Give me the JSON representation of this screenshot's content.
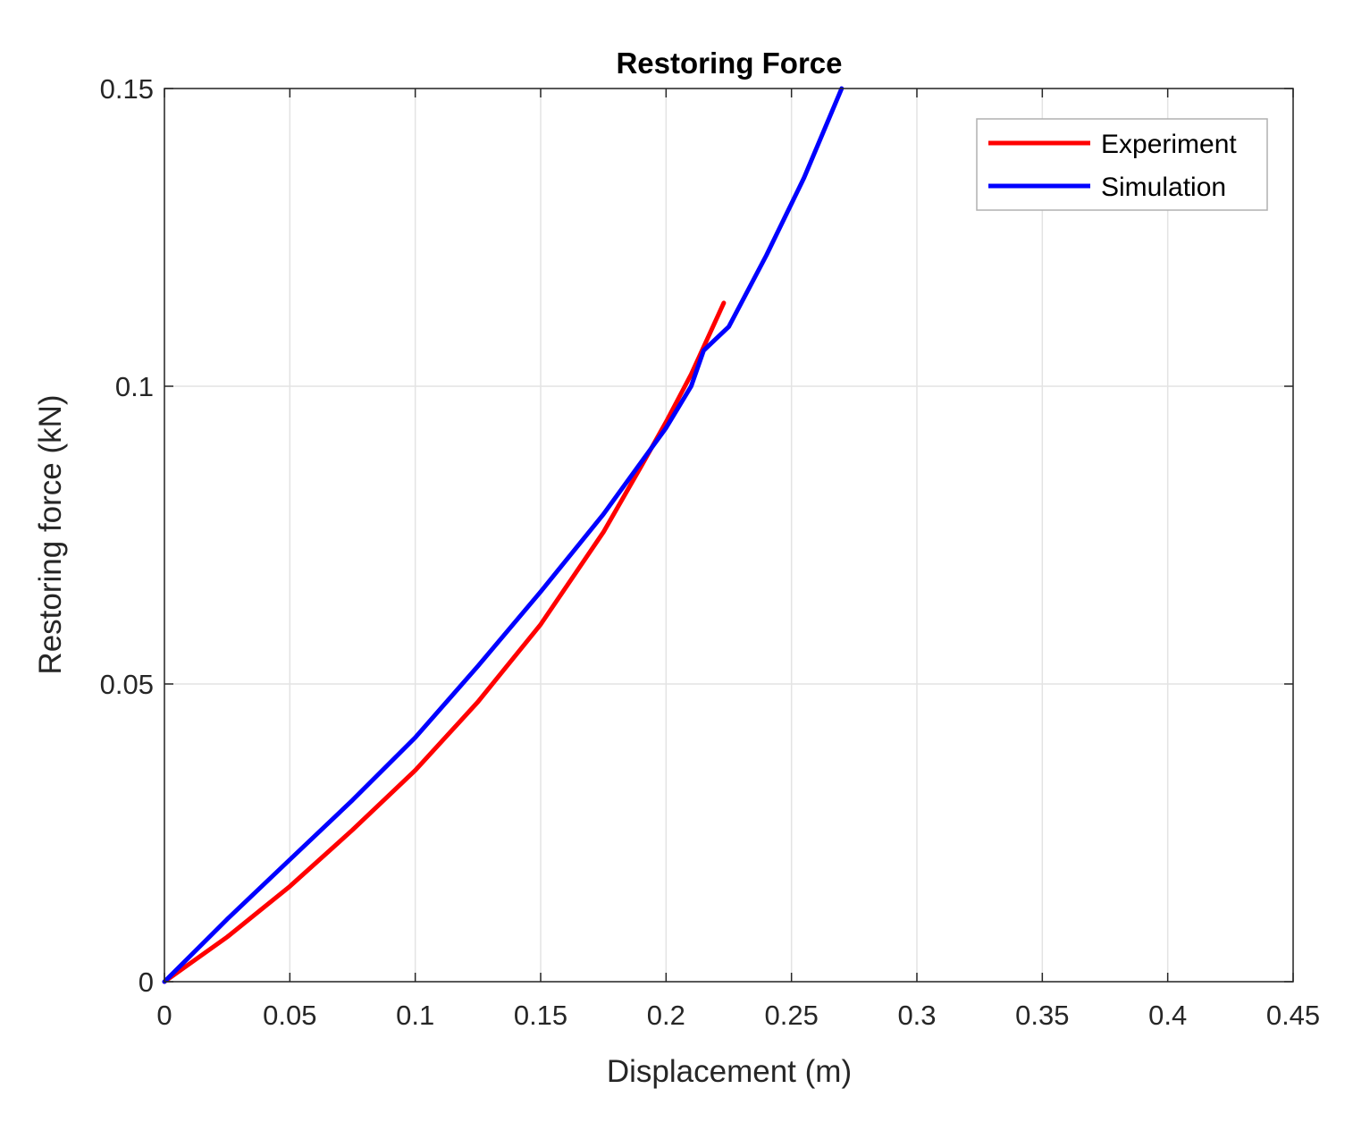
{
  "chart_data": {
    "type": "line",
    "title": "Restoring Force",
    "xlabel": "Displacement (m)",
    "ylabel": "Restoring force (kN)",
    "xlim": [
      0,
      0.45
    ],
    "ylim": [
      0,
      0.15
    ],
    "xticks": [
      0,
      0.05,
      0.1,
      0.15,
      0.2,
      0.25,
      0.3,
      0.35,
      0.4,
      0.45
    ],
    "xtick_labels": [
      "0",
      "0.05",
      "0.1",
      "0.15",
      "0.2",
      "0.25",
      "0.3",
      "0.35",
      "0.4",
      "0.45"
    ],
    "yticks": [
      0,
      0.05,
      0.1,
      0.15
    ],
    "ytick_labels": [
      "0",
      "0.05",
      "0.1",
      "0.15"
    ],
    "grid": true,
    "legend_position": "top-right",
    "series": [
      {
        "name": "Experiment",
        "color": "#ff0000",
        "x": [
          0,
          0.025,
          0.05,
          0.075,
          0.1,
          0.125,
          0.15,
          0.175,
          0.19,
          0.2,
          0.21,
          0.223
        ],
        "y": [
          0,
          0.0075,
          0.016,
          0.0255,
          0.0355,
          0.047,
          0.06,
          0.0755,
          0.0865,
          0.094,
          0.102,
          0.114
        ]
      },
      {
        "name": "Simulation",
        "color": "#0000ff",
        "x": [
          0,
          0.025,
          0.05,
          0.075,
          0.1,
          0.125,
          0.15,
          0.175,
          0.2,
          0.21,
          0.215,
          0.225,
          0.24,
          0.255,
          0.27
        ],
        "y": [
          0,
          0.0105,
          0.0205,
          0.0305,
          0.041,
          0.053,
          0.0655,
          0.0785,
          0.093,
          0.1,
          0.106,
          0.11,
          0.122,
          0.135,
          0.15
        ]
      }
    ]
  }
}
